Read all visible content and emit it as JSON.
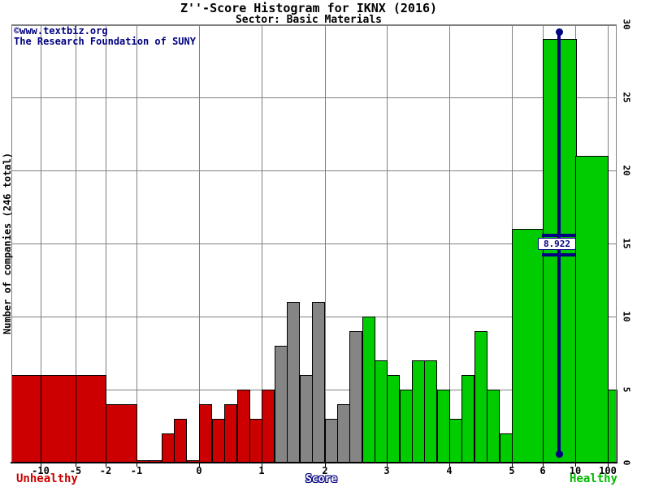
{
  "header": {
    "title": "Z''-Score Histogram for IKNX (2016)",
    "subtitle": "Sector: Basic Materials"
  },
  "watermark": {
    "line1": "©www.textbiz.org",
    "line2": "The Research Foundation of SUNY"
  },
  "y_axis": {
    "title": "Number of companies (246 total)",
    "tick_labels": [
      "0",
      "5",
      "10",
      "15",
      "20",
      "25",
      "30"
    ],
    "tick_values": [
      0,
      5,
      10,
      15,
      20,
      25,
      30
    ]
  },
  "x_axis": {
    "tick_labels": [
      "-10",
      "-5",
      "-2",
      "-1",
      "0",
      "1",
      "2",
      "3",
      "4",
      "5",
      "6",
      "10",
      "100"
    ],
    "tick_values": [
      -10,
      -5,
      -2,
      -1,
      0,
      1,
      2,
      3,
      4,
      5,
      6,
      10,
      100
    ]
  },
  "footer": {
    "left_label": "Unhealthy",
    "center_label": "Score",
    "right_label": "Healthy"
  },
  "marker": {
    "label": "8.922"
  },
  "chart_data": {
    "type": "bar",
    "title": "Z''-Score Histogram for IKNX (2016)",
    "subtitle": "Sector: Basic Materials",
    "xlabel": "Score",
    "ylabel": "Number of companies (246 total)",
    "ylim": [
      0,
      30
    ],
    "grid": true,
    "total_companies": 246,
    "marker_value_label": "8.922",
    "colors": {
      "unhealthy": "#cc0000",
      "distress": "#858585",
      "healthy": "#00cc00",
      "marker": "#000080",
      "gridline": "#808080"
    },
    "zone_totals": {
      "unhealthy": 51,
      "distress": 52,
      "healthy": 143
    },
    "bins": [
      {
        "from": null,
        "to": -10,
        "count": 6,
        "zone": "unhealthy"
      },
      {
        "from": -10,
        "to": -5,
        "count": 6,
        "zone": "unhealthy"
      },
      {
        "from": -5,
        "to": -2,
        "count": 6,
        "zone": "unhealthy"
      },
      {
        "from": -2,
        "to": -1,
        "count": 4,
        "zone": "unhealthy"
      },
      {
        "from": -1,
        "to": -0.8,
        "count": 0,
        "zone": "unhealthy"
      },
      {
        "from": -0.8,
        "to": -0.6,
        "count": 0,
        "zone": "unhealthy"
      },
      {
        "from": -0.6,
        "to": -0.4,
        "count": 2,
        "zone": "unhealthy"
      },
      {
        "from": -0.4,
        "to": -0.2,
        "count": 3,
        "zone": "unhealthy"
      },
      {
        "from": -0.2,
        "to": 0,
        "count": 0,
        "zone": "unhealthy"
      },
      {
        "from": 0,
        "to": 0.2,
        "count": 4,
        "zone": "unhealthy"
      },
      {
        "from": 0.2,
        "to": 0.4,
        "count": 3,
        "zone": "unhealthy"
      },
      {
        "from": 0.4,
        "to": 0.6,
        "count": 4,
        "zone": "unhealthy"
      },
      {
        "from": 0.6,
        "to": 0.8,
        "count": 5,
        "zone": "unhealthy"
      },
      {
        "from": 0.8,
        "to": 1,
        "count": 3,
        "zone": "unhealthy"
      },
      {
        "from": 1,
        "to": 1.2,
        "count": 5,
        "zone": "unhealthy"
      },
      {
        "from": 1.2,
        "to": 1.4,
        "count": 8,
        "zone": "distress"
      },
      {
        "from": 1.4,
        "to": 1.6,
        "count": 11,
        "zone": "distress"
      },
      {
        "from": 1.6,
        "to": 1.8,
        "count": 6,
        "zone": "distress"
      },
      {
        "from": 1.8,
        "to": 2,
        "count": 11,
        "zone": "distress"
      },
      {
        "from": 2,
        "to": 2.2,
        "count": 3,
        "zone": "distress"
      },
      {
        "from": 2.2,
        "to": 2.4,
        "count": 4,
        "zone": "distress"
      },
      {
        "from": 2.4,
        "to": 2.6,
        "count": 9,
        "zone": "distress"
      },
      {
        "from": 2.6,
        "to": 2.8,
        "count": 10,
        "zone": "healthy"
      },
      {
        "from": 2.8,
        "to": 3,
        "count": 7,
        "zone": "healthy"
      },
      {
        "from": 3,
        "to": 3.2,
        "count": 6,
        "zone": "healthy"
      },
      {
        "from": 3.2,
        "to": 3.4,
        "count": 5,
        "zone": "healthy"
      },
      {
        "from": 3.4,
        "to": 3.6,
        "count": 7,
        "zone": "healthy"
      },
      {
        "from": 3.6,
        "to": 3.8,
        "count": 7,
        "zone": "healthy"
      },
      {
        "from": 3.8,
        "to": 4,
        "count": 5,
        "zone": "healthy"
      },
      {
        "from": 4,
        "to": 4.2,
        "count": 3,
        "zone": "healthy"
      },
      {
        "from": 4.2,
        "to": 4.4,
        "count": 6,
        "zone": "healthy"
      },
      {
        "from": 4.4,
        "to": 4.6,
        "count": 9,
        "zone": "healthy"
      },
      {
        "from": 4.6,
        "to": 4.8,
        "count": 5,
        "zone": "healthy"
      },
      {
        "from": 4.8,
        "to": 5,
        "count": 2,
        "zone": "healthy"
      },
      {
        "from": 5,
        "to": 6,
        "count": 16,
        "zone": "healthy"
      },
      {
        "from": 6,
        "to": 10,
        "count": 29,
        "zone": "healthy"
      },
      {
        "from": 10,
        "to": 100,
        "count": 21,
        "zone": "healthy"
      },
      {
        "from": 100,
        "to": null,
        "count": 5,
        "zone": "healthy"
      }
    ]
  }
}
